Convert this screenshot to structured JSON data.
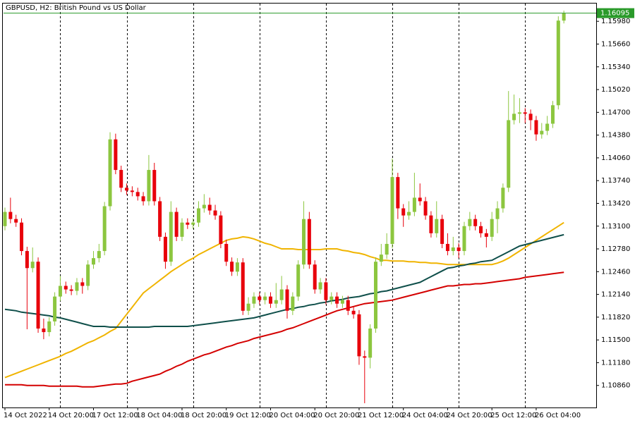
{
  "chart_data": {
    "type": "candlestick",
    "title": "GBPUSD, H2:  British Pound vs US Dollar",
    "categories": [
      "14 Oct 2022",
      null,
      null,
      null,
      null,
      null,
      null,
      null,
      "14 Oct 20:00",
      null,
      null,
      null,
      null,
      null,
      null,
      null,
      "17 Oct 12:00",
      null,
      null,
      null,
      null,
      null,
      null,
      null,
      "18 Oct 04:00",
      null,
      null,
      null,
      null,
      null,
      null,
      null,
      "18 Oct 20:00",
      null,
      null,
      null,
      null,
      null,
      null,
      null,
      "19 Oct 12:00",
      null,
      null,
      null,
      null,
      null,
      null,
      null,
      "20 Oct 04:00",
      null,
      null,
      null,
      null,
      null,
      null,
      null,
      "20 Oct 20:00",
      null,
      null,
      null,
      null,
      null,
      null,
      null,
      "21 Oct 12:00",
      null,
      null,
      null,
      null,
      null,
      null,
      null,
      "24 Oct 04:00",
      null,
      null,
      null,
      null,
      null,
      null,
      null,
      "24 Oct 20:00",
      null,
      null,
      null,
      null,
      null,
      null,
      null,
      "25 Oct 12:00",
      null,
      null,
      null,
      null,
      null,
      null,
      null,
      "26 Oct 04:00",
      null,
      null,
      null,
      null,
      null
    ],
    "open": [
      1.131,
      1.133,
      1.132,
      1.1315,
      1.1275,
      1.1251,
      1.126,
      1.1166,
      1.1161,
      1.1176,
      1.1211,
      1.1226,
      1.1221,
      1.1219,
      1.1231,
      1.1226,
      1.1256,
      1.1265,
      1.1275,
      1.1338,
      1.1432,
      1.1389,
      1.1364,
      1.136,
      1.1358,
      1.1352,
      1.1345,
      1.1389,
      1.1345,
      1.1295,
      1.126,
      1.133,
      1.1295,
      1.1315,
      1.1312,
      1.1315,
      1.1335,
      1.134,
      1.1332,
      1.1325,
      1.1285,
      1.126,
      1.1246,
      1.1259,
      1.1191,
      1.1201,
      1.1211,
      1.1206,
      1.1211,
      1.1201,
      1.1206,
      1.1221,
      1.1191,
      1.1211,
      1.1256,
      1.132,
      1.1256,
      1.1221,
      1.1231,
      1.1206,
      1.1211,
      1.1201,
      1.1206,
      1.1191,
      1.1186,
      1.1127,
      1.1125,
      1.1166,
      1.126,
      1.127,
      1.1285,
      1.1379,
      1.1335,
      1.1325,
      1.133,
      1.135,
      1.1345,
      1.1325,
      1.13,
      1.132,
      1.1285,
      1.1275,
      1.128,
      1.1275,
      1.131,
      1.132,
      1.131,
      1.13,
      1.1295,
      1.132,
      1.1335,
      1.1364,
      1.1459,
      1.1468,
      1.147,
      1.1468,
      1.1459,
      1.1439,
      1.1444,
      1.1454,
      1.148,
      1.1599
    ],
    "high": [
      1.1336,
      1.135,
      1.1326,
      1.1321,
      1.1281,
      1.128,
      1.1266,
      1.118,
      1.1182,
      1.1217,
      1.124,
      1.1232,
      1.1227,
      1.1237,
      1.1237,
      1.1262,
      1.1275,
      1.1285,
      1.1344,
      1.1442,
      1.144,
      1.1395,
      1.137,
      1.1366,
      1.1364,
      1.1358,
      1.141,
      1.1399,
      1.1351,
      1.1301,
      1.1345,
      1.1336,
      1.1321,
      1.1321,
      1.1321,
      1.1345,
      1.1355,
      1.135,
      1.134,
      1.1331,
      1.1291,
      1.1266,
      1.1265,
      1.1265,
      1.121,
      1.1217,
      1.1217,
      1.1217,
      1.1217,
      1.123,
      1.124,
      1.1227,
      1.1217,
      1.1262,
      1.1345,
      1.133,
      1.1262,
      1.1237,
      1.1237,
      1.1217,
      1.1217,
      1.1212,
      1.1212,
      1.1197,
      1.1192,
      1.1135,
      1.1172,
      1.1266,
      1.1285,
      1.13,
      1.1405,
      1.1385,
      1.1341,
      1.1345,
      1.1385,
      1.137,
      1.1351,
      1.1331,
      1.1345,
      1.1326,
      1.13,
      1.1295,
      1.1286,
      1.1316,
      1.133,
      1.1326,
      1.1316,
      1.1306,
      1.133,
      1.1345,
      1.137,
      1.15,
      1.1495,
      1.149,
      1.1476,
      1.1474,
      1.1465,
      1.1455,
      1.1465,
      1.1486,
      1.1605,
      1.1613
    ],
    "low": [
      1.1304,
      1.1314,
      1.1309,
      1.1269,
      1.1165,
      1.1245,
      1.116,
      1.1151,
      1.1155,
      1.117,
      1.1205,
      1.1215,
      1.1213,
      1.1213,
      1.1215,
      1.122,
      1.125,
      1.1259,
      1.1269,
      1.1332,
      1.1383,
      1.1358,
      1.1354,
      1.1352,
      1.1346,
      1.1339,
      1.1339,
      1.1339,
      1.1289,
      1.125,
      1.1254,
      1.1289,
      1.1289,
      1.1306,
      1.1306,
      1.1309,
      1.1329,
      1.1326,
      1.1319,
      1.1279,
      1.1254,
      1.124,
      1.124,
      1.1185,
      1.1185,
      1.1195,
      1.12,
      1.12,
      1.1195,
      1.1195,
      1.12,
      1.118,
      1.1185,
      1.1205,
      1.125,
      1.125,
      1.1215,
      1.1215,
      1.12,
      1.12,
      1.1195,
      1.1195,
      1.1185,
      1.118,
      1.1115,
      1.1061,
      1.111,
      1.116,
      1.1254,
      1.1264,
      1.1279,
      1.132,
      1.1309,
      1.1319,
      1.1324,
      1.1339,
      1.1319,
      1.1294,
      1.1294,
      1.1279,
      1.1269,
      1.1269,
      1.1265,
      1.1269,
      1.1304,
      1.1304,
      1.1294,
      1.128,
      1.1289,
      1.13,
      1.1329,
      1.1358,
      1.1453,
      1.1455,
      1.1455,
      1.1445,
      1.143,
      1.1433,
      1.1438,
      1.1448,
      1.1474,
      1.1595
    ],
    "close": [
      1.133,
      1.132,
      1.1315,
      1.1275,
      1.1251,
      1.126,
      1.1166,
      1.1161,
      1.1176,
      1.1211,
      1.1226,
      1.1221,
      1.1219,
      1.1231,
      1.1226,
      1.1256,
      1.1265,
      1.1275,
      1.1338,
      1.1432,
      1.1389,
      1.1364,
      1.136,
      1.1358,
      1.1352,
      1.1345,
      1.1389,
      1.1345,
      1.1295,
      1.126,
      1.133,
      1.1295,
      1.1315,
      1.1312,
      1.1315,
      1.1335,
      1.134,
      1.1332,
      1.1325,
      1.1285,
      1.126,
      1.1246,
      1.1259,
      1.1191,
      1.1201,
      1.1211,
      1.1206,
      1.1211,
      1.1201,
      1.1206,
      1.1221,
      1.1191,
      1.1211,
      1.1256,
      1.132,
      1.1256,
      1.1221,
      1.1231,
      1.1206,
      1.1211,
      1.1201,
      1.1206,
      1.1191,
      1.1186,
      1.1127,
      1.1125,
      1.1166,
      1.126,
      1.127,
      1.1285,
      1.1379,
      1.1335,
      1.1325,
      1.133,
      1.135,
      1.1345,
      1.1325,
      1.13,
      1.132,
      1.1285,
      1.1275,
      1.128,
      1.1275,
      1.131,
      1.132,
      1.131,
      1.13,
      1.1295,
      1.132,
      1.1335,
      1.1364,
      1.1459,
      1.1468,
      1.147,
      1.1468,
      1.1459,
      1.1439,
      1.1444,
      1.1454,
      1.148,
      1.1599,
      1.16095
    ],
    "up_color": "#8cc63f",
    "down_color": "#e8000b",
    "lines": [
      {
        "color": "#f0b400",
        "values": [
          1.1097,
          1.11,
          1.1103,
          1.1106,
          1.1109,
          1.1112,
          1.1115,
          1.1118,
          1.1121,
          1.1124,
          1.1127,
          1.1131,
          1.1134,
          1.1138,
          1.1142,
          1.1146,
          1.1149,
          1.1153,
          1.1157,
          1.1162,
          1.1166,
          1.1176,
          1.1186,
          1.1196,
          1.1206,
          1.1216,
          1.1222,
          1.1228,
          1.1234,
          1.124,
          1.1246,
          1.1251,
          1.1256,
          1.1261,
          1.1265,
          1.127,
          1.1274,
          1.1278,
          1.1282,
          1.1286,
          1.129,
          1.1292,
          1.1293,
          1.1295,
          1.1294,
          1.1292,
          1.1289,
          1.1286,
          1.1284,
          1.1281,
          1.1278,
          1.1278,
          1.1278,
          1.1277,
          1.1277,
          1.1277,
          1.1277,
          1.1277,
          1.1278,
          1.1278,
          1.1278,
          1.1276,
          1.1275,
          1.1273,
          1.1272,
          1.127,
          1.1267,
          1.1265,
          1.1262,
          1.1262,
          1.1261,
          1.1261,
          1.1261,
          1.126,
          1.126,
          1.1259,
          1.1259,
          1.1258,
          1.1258,
          1.1257,
          1.1256,
          1.1256,
          1.1256,
          1.1256,
          1.1256,
          1.1256,
          1.1256,
          1.1256,
          1.1256,
          1.1258,
          1.1261,
          1.1265,
          1.127,
          1.1275,
          1.128,
          1.1285,
          1.129,
          1.1295,
          1.13,
          1.1305,
          1.131,
          1.1315
        ]
      },
      {
        "color": "#0f4f4a",
        "values": [
          1.1193,
          1.1192,
          1.1191,
          1.1189,
          1.1188,
          1.1187,
          1.1186,
          1.1185,
          1.1184,
          1.1182,
          1.1181,
          1.1179,
          1.1177,
          1.1175,
          1.1173,
          1.1171,
          1.1169,
          1.1169,
          1.1169,
          1.1168,
          1.1168,
          1.1168,
          1.1168,
          1.1168,
          1.1168,
          1.1168,
          1.1168,
          1.1169,
          1.1169,
          1.1169,
          1.1169,
          1.1169,
          1.1169,
          1.1169,
          1.117,
          1.1171,
          1.1172,
          1.1173,
          1.1174,
          1.1175,
          1.1176,
          1.1177,
          1.1178,
          1.1179,
          1.118,
          1.1181,
          1.1183,
          1.1185,
          1.1187,
          1.1189,
          1.1191,
          1.1193,
          1.1194,
          1.1196,
          1.1197,
          1.1199,
          1.12,
          1.1202,
          1.1203,
          1.1205,
          1.1206,
          1.1207,
          1.1209,
          1.121,
          1.1211,
          1.1213,
          1.1215,
          1.1216,
          1.1218,
          1.1219,
          1.1221,
          1.1223,
          1.1225,
          1.1227,
          1.1229,
          1.1231,
          1.1235,
          1.1239,
          1.1243,
          1.1247,
          1.1251,
          1.1252,
          1.1254,
          1.1255,
          1.1257,
          1.1258,
          1.126,
          1.1261,
          1.1262,
          1.1266,
          1.127,
          1.1274,
          1.1278,
          1.1282,
          1.1284,
          1.1286,
          1.1288,
          1.129,
          1.1292,
          1.1294,
          1.1296,
          1.1298
        ]
      },
      {
        "color": "#d40000",
        "values": [
          1.1087,
          1.1087,
          1.1087,
          1.1087,
          1.1086,
          1.1086,
          1.1086,
          1.1086,
          1.1085,
          1.1085,
          1.1085,
          1.1085,
          1.1085,
          1.1085,
          1.1084,
          1.1084,
          1.1084,
          1.1085,
          1.1086,
          1.1087,
          1.1088,
          1.1088,
          1.1089,
          1.1092,
          1.1094,
          1.1096,
          1.1098,
          1.11,
          1.1102,
          1.1106,
          1.1109,
          1.1113,
          1.1116,
          1.112,
          1.1123,
          1.1126,
          1.1129,
          1.1131,
          1.1134,
          1.1137,
          1.114,
          1.1142,
          1.1145,
          1.1147,
          1.1149,
          1.1152,
          1.1154,
          1.1156,
          1.1158,
          1.116,
          1.1162,
          1.1165,
          1.1167,
          1.117,
          1.1173,
          1.1176,
          1.1179,
          1.1182,
          1.1185,
          1.1188,
          1.1191,
          1.1193,
          1.1195,
          1.1197,
          1.1199,
          1.1201,
          1.1202,
          1.1203,
          1.1204,
          1.1205,
          1.1206,
          1.1208,
          1.121,
          1.1212,
          1.1214,
          1.1216,
          1.1218,
          1.122,
          1.1222,
          1.1224,
          1.1226,
          1.1226,
          1.1227,
          1.1228,
          1.1228,
          1.1229,
          1.1229,
          1.123,
          1.1231,
          1.1232,
          1.1233,
          1.1234,
          1.1235,
          1.1236,
          1.1238,
          1.1239,
          1.124,
          1.1241,
          1.1242,
          1.1243,
          1.1244,
          1.1245
        ]
      }
    ],
    "last_price": 1.16095,
    "last_price_color": "#2a9a2a",
    "ylim": [
      1.1055,
      1.1623
    ],
    "yticks": [
      {
        "value": 1.1598,
        "label": "1.15980"
      },
      {
        "value": 1.1566,
        "label": "1.15660"
      },
      {
        "value": 1.1534,
        "label": "1.15340"
      },
      {
        "value": 1.1502,
        "label": "1.15020"
      },
      {
        "value": 1.147,
        "label": "1.14700"
      },
      {
        "value": 1.1438,
        "label": "1.14380"
      },
      {
        "value": 1.1406,
        "label": "1.14060"
      },
      {
        "value": 1.1374,
        "label": "1.13740"
      },
      {
        "value": 1.1342,
        "label": "1.13420"
      },
      {
        "value": 1.131,
        "label": "1.13100"
      },
      {
        "value": 1.1278,
        "label": "1.12780"
      },
      {
        "value": 1.1246,
        "label": "1.12460"
      },
      {
        "value": 1.1214,
        "label": "1.12140"
      },
      {
        "value": 1.1182,
        "label": "1.11820"
      },
      {
        "value": 1.115,
        "label": "1.11500"
      },
      {
        "value": 1.1118,
        "label": "1.11180"
      },
      {
        "value": 1.1086,
        "label": "1.10860"
      }
    ],
    "grid": false
  }
}
